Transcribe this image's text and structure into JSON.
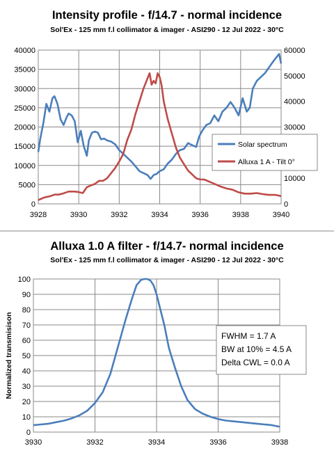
{
  "colors": {
    "solar": "#4a7ebb",
    "filter": "#be4b48",
    "transmission": "#4a7ebb",
    "grid": "#898989",
    "axis": "#898989"
  },
  "chart_data": [
    {
      "type": "line",
      "title": "Intensity profile - f/14.7 - normal incidence",
      "subtitle": "Sol'Ex - 125 mm f.l collimator & imager - ASI290 - 12 Jul 2022 - 30°C",
      "xlabel": "",
      "ylabel": "",
      "y2label": "",
      "xlim": [
        3928,
        3940
      ],
      "ylim": [
        0,
        40000
      ],
      "y2lim": [
        0,
        60000
      ],
      "xticks": [
        "3928",
        "3930",
        "3932",
        "3934",
        "3936",
        "3938",
        "3940"
      ],
      "yticks": [
        "0",
        "5000",
        "10000",
        "15000",
        "20000",
        "25000",
        "30000",
        "35000",
        "40000"
      ],
      "y2ticks": [
        "0",
        "10000",
        "20000",
        "30000",
        "40000",
        "50000",
        "60000"
      ],
      "grid": true,
      "legend": "right",
      "series": [
        {
          "name": "Solar spectrum",
          "axis": "left",
          "x": [
            3928.0,
            3928.1,
            3928.25,
            3928.4,
            3928.55,
            3928.7,
            3928.8,
            3928.95,
            3929.1,
            3929.25,
            3929.4,
            3929.5,
            3929.65,
            3929.8,
            3929.95,
            3930.1,
            3930.25,
            3930.4,
            3930.5,
            3930.65,
            3930.8,
            3930.95,
            3931.1,
            3931.25,
            3931.4,
            3931.6,
            3931.8,
            3932.0,
            3932.2,
            3932.4,
            3932.6,
            3932.8,
            3933.0,
            3933.2,
            3933.4,
            3933.55,
            3933.7,
            3933.85,
            3934.0,
            3934.2,
            3934.4,
            3934.6,
            3934.8,
            3935.0,
            3935.2,
            3935.4,
            3935.6,
            3935.8,
            3935.95,
            3936.1,
            3936.3,
            3936.5,
            3936.7,
            3936.9,
            3937.1,
            3937.3,
            3937.5,
            3937.7,
            3937.9,
            3938.1,
            3938.3,
            3938.45,
            3938.6,
            3938.8,
            3939.0,
            3939.2,
            3939.4,
            3939.6,
            3939.75,
            3939.9,
            3940.0
          ],
          "y": [
            13500,
            17000,
            21000,
            26000,
            24000,
            27500,
            28000,
            26000,
            22000,
            20500,
            22500,
            23500,
            23000,
            21500,
            16000,
            19000,
            15000,
            12500,
            16500,
            18500,
            18800,
            18500,
            16800,
            17000,
            16500,
            16200,
            15500,
            14000,
            13000,
            12000,
            11000,
            9800,
            8500,
            8000,
            7500,
            6500,
            7500,
            7800,
            8500,
            9000,
            10500,
            11500,
            13000,
            14000,
            14300,
            15800,
            15300,
            14800,
            17500,
            19000,
            20500,
            21000,
            23000,
            21500,
            24000,
            25000,
            26500,
            25000,
            23000,
            27500,
            24000,
            25000,
            30000,
            32000,
            33000,
            34000,
            35500,
            37000,
            38000,
            39000,
            36500
          ]
        },
        {
          "name": "Alluxa 1 A - Tilt 0°",
          "axis": "right",
          "x": [
            3928.0,
            3928.3,
            3928.6,
            3928.8,
            3929.0,
            3929.2,
            3929.5,
            3929.8,
            3930.0,
            3930.2,
            3930.4,
            3930.6,
            3930.8,
            3931.0,
            3931.2,
            3931.4,
            3931.6,
            3931.8,
            3932.0,
            3932.2,
            3932.4,
            3932.6,
            3932.8,
            3933.0,
            3933.2,
            3933.35,
            3933.5,
            3933.6,
            3933.7,
            3933.8,
            3933.9,
            3934.0,
            3934.1,
            3934.2,
            3934.3,
            3934.4,
            3934.6,
            3934.8,
            3935.0,
            3935.2,
            3935.4,
            3935.6,
            3935.8,
            3936.0,
            3936.2,
            3936.5,
            3936.8,
            3937.0,
            3937.3,
            3937.6,
            3937.9,
            3938.2,
            3938.5,
            3938.8,
            3939.1,
            3939.4,
            3939.7,
            3939.9,
            3940.0
          ],
          "y": [
            1500,
            2500,
            3000,
            3600,
            3600,
            4000,
            4800,
            4800,
            4600,
            4200,
            6500,
            7200,
            7800,
            9000,
            9000,
            10000,
            12000,
            14000,
            16500,
            19500,
            25000,
            29000,
            35000,
            40000,
            45000,
            48000,
            51000,
            46500,
            48000,
            47000,
            51000,
            49500,
            46000,
            40000,
            36500,
            33000,
            27500,
            22000,
            18000,
            15500,
            13000,
            11500,
            10000,
            9500,
            9500,
            8500,
            7500,
            6800,
            6000,
            5500,
            4500,
            4000,
            4000,
            4200,
            3800,
            3500,
            3500,
            3200,
            3000
          ]
        }
      ]
    },
    {
      "type": "line",
      "title": "Alluxa 1.0 A filter - f/14.7- normal incidence",
      "subtitle": "Sol'Ex - 125 mm f.l collimator & imager - ASI290 - 12 Jul 2022 - 30°C",
      "xlabel": "",
      "ylabel": "Normalized transmisison",
      "xlim": [
        3930,
        3938
      ],
      "ylim": [
        0,
        100
      ],
      "xticks": [
        "3930",
        "3932",
        "3934",
        "3936",
        "3938"
      ],
      "yticks": [
        "0",
        "10",
        "20",
        "30",
        "40",
        "50",
        "60",
        "70",
        "80",
        "90",
        "100"
      ],
      "grid": true,
      "legend": "none",
      "annotations": [
        "FWHM = 1.7 A",
        "BW at 10% = 4.5 A",
        "Delta CWL = 0.0 A"
      ],
      "series": [
        {
          "name": "",
          "x": [
            3930.0,
            3930.25,
            3930.5,
            3930.75,
            3931.0,
            3931.25,
            3931.5,
            3931.75,
            3932.0,
            3932.25,
            3932.5,
            3932.75,
            3933.0,
            3933.2,
            3933.35,
            3933.5,
            3933.6,
            3933.7,
            3933.8,
            3933.9,
            3934.0,
            3934.1,
            3934.25,
            3934.4,
            3934.6,
            3934.8,
            3935.0,
            3935.25,
            3935.5,
            3935.75,
            3936.0,
            3936.25,
            3936.5,
            3936.75,
            3937.0,
            3937.25,
            3937.5,
            3937.75,
            3938.0
          ],
          "y": [
            4.5,
            5.0,
            5.5,
            6.5,
            7.5,
            9.0,
            11.0,
            14.0,
            19.0,
            26.0,
            38.0,
            56.0,
            74.0,
            87.0,
            96.0,
            99.5,
            100.0,
            100.0,
            99.0,
            96.0,
            90.0,
            82.0,
            70.0,
            55.0,
            42.0,
            30.0,
            21.0,
            15.0,
            12.0,
            10.0,
            8.5,
            7.5,
            7.0,
            6.5,
            6.0,
            5.5,
            5.0,
            4.5,
            3.5
          ]
        }
      ]
    }
  ]
}
